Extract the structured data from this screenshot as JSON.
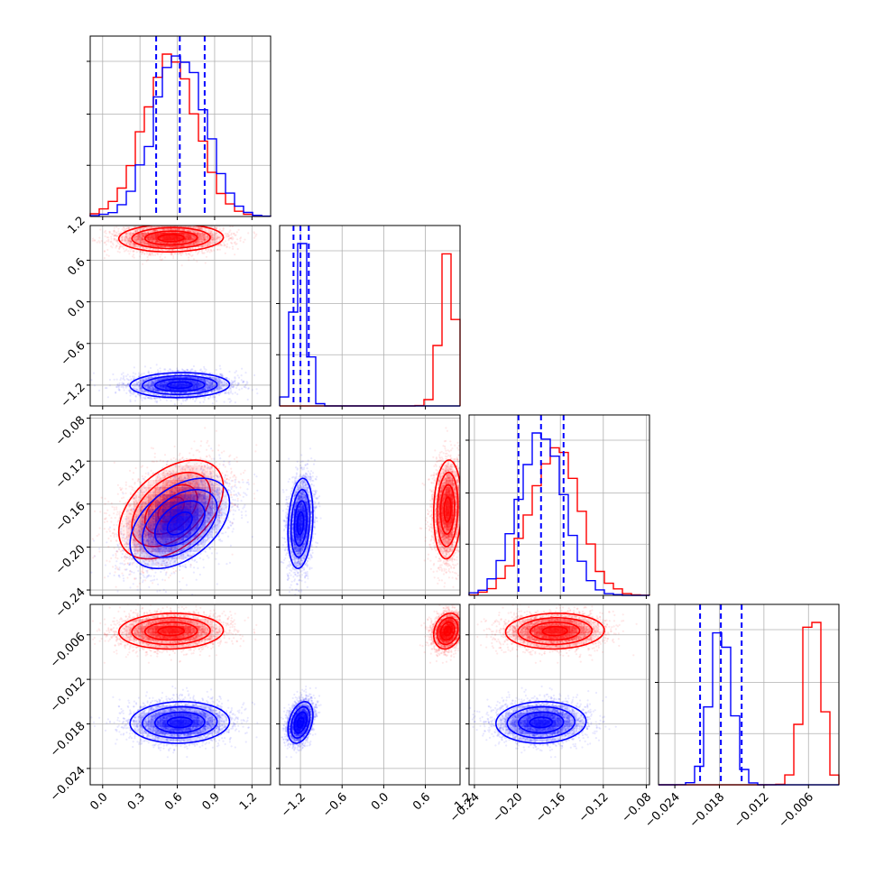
{
  "chart_data": {
    "type": "corner",
    "grid": true,
    "series": [
      {
        "color": "#ff0000",
        "means": [
          0.55,
          0.92,
          -0.165,
          -0.0055
        ],
        "sds": [
          0.21,
          0.1,
          0.023,
          0.0012
        ],
        "corr": [
          [
            1,
            0.05,
            0.45,
            0.05
          ],
          [
            0.05,
            1,
            0.1,
            0.2
          ],
          [
            0.45,
            0.1,
            1,
            0.05
          ],
          [
            0.05,
            0.2,
            0.05,
            1
          ]
        ]
      },
      {
        "color": "#0000ff",
        "means": [
          0.62,
          -1.2,
          -0.178,
          -0.0178
        ],
        "sds": [
          0.2,
          0.09,
          0.021,
          0.0014
        ],
        "corr": [
          [
            1,
            0.05,
            0.45,
            0.05
          ],
          [
            0.05,
            1,
            0.2,
            0.35
          ],
          [
            0.45,
            0.2,
            1,
            0.05
          ],
          [
            0.05,
            0.35,
            0.05,
            1
          ]
        ]
      }
    ],
    "quantiles": [
      [
        0.43,
        0.62,
        0.82
      ],
      [
        -1.3,
        -1.2,
        -1.08
      ],
      [
        -0.199,
        -0.178,
        -0.157
      ],
      [
        -0.0206,
        -0.0178,
        -0.015
      ]
    ],
    "ranges": [
      [
        -0.1,
        1.35
      ],
      [
        -1.5,
        1.1
      ],
      [
        -0.245,
        -0.077
      ],
      [
        -0.0262,
        -0.0019
      ]
    ],
    "ticks": [
      [
        "0.0",
        "0.3",
        "0.6",
        "0.9",
        "1.2"
      ],
      [
        "−1.2",
        "−0.6",
        "0.0",
        "0.6",
        "1.2"
      ],
      [
        "−0.24",
        "−0.20",
        "−0.16",
        "−0.12",
        "−0.08"
      ],
      [
        "−0.024",
        "−0.018",
        "−0.012",
        "−0.006"
      ]
    ],
    "tick_values": [
      [
        0.0,
        0.3,
        0.6,
        0.9,
        1.2
      ],
      [
        -1.2,
        -0.6,
        0.0,
        0.6,
        1.2
      ],
      [
        -0.24,
        -0.2,
        -0.16,
        -0.12,
        -0.08
      ],
      [
        -0.024,
        -0.018,
        -0.012,
        -0.006
      ]
    ]
  }
}
